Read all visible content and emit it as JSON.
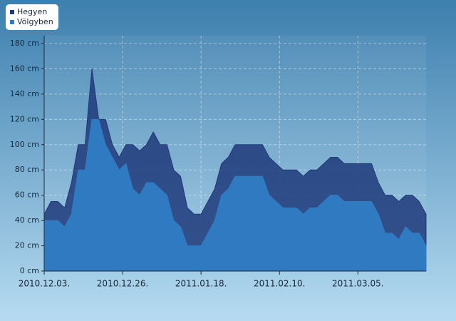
{
  "chart_data": {
    "type": "area",
    "x": [
      "2010.12.03.",
      "2010.12.05.",
      "2010.12.07.",
      "2010.12.09.",
      "2010.12.11.",
      "2010.12.13.",
      "2010.12.15.",
      "2010.12.17.",
      "2010.12.19.",
      "2010.12.21.",
      "2010.12.23.",
      "2010.12.25.",
      "2010.12.27.",
      "2010.12.29.",
      "2010.12.31.",
      "2011.01.02.",
      "2011.01.04.",
      "2011.01.06.",
      "2011.01.08.",
      "2011.01.10.",
      "2011.01.12.",
      "2011.01.14.",
      "2011.01.16.",
      "2011.01.18.",
      "2011.01.20.",
      "2011.01.22.",
      "2011.01.24.",
      "2011.01.26.",
      "2011.01.28.",
      "2011.01.30.",
      "2011.02.01.",
      "2011.02.03.",
      "2011.02.05.",
      "2011.02.07.",
      "2011.02.09.",
      "2011.02.11.",
      "2011.02.13.",
      "2011.02.15.",
      "2011.02.17.",
      "2011.02.19.",
      "2011.02.21.",
      "2011.02.23.",
      "2011.02.25.",
      "2011.02.27.",
      "2011.03.01.",
      "2011.03.03.",
      "2011.03.05.",
      "2011.03.07.",
      "2011.03.09.",
      "2011.03.11.",
      "2011.03.13.",
      "2011.03.15.",
      "2011.03.17.",
      "2011.03.19.",
      "2011.03.21.",
      "2011.03.23.",
      "2011.03.25."
    ],
    "series": [
      {
        "name": "Hegyen",
        "color": "#1f3a7a",
        "values": [
          45,
          55,
          55,
          50,
          70,
          100,
          100,
          160,
          120,
          120,
          100,
          90,
          100,
          100,
          95,
          100,
          110,
          100,
          100,
          80,
          75,
          50,
          45,
          45,
          55,
          65,
          85,
          90,
          100,
          100,
          100,
          100,
          100,
          90,
          85,
          80,
          80,
          80,
          75,
          80,
          80,
          85,
          90,
          90,
          85,
          85,
          85,
          85,
          85,
          70,
          60,
          60,
          55,
          60,
          60,
          55,
          45
        ]
      },
      {
        "name": "Völgyben",
        "color": "#2f7cc4",
        "values": [
          40,
          40,
          40,
          35,
          45,
          80,
          80,
          120,
          120,
          100,
          90,
          80,
          85,
          65,
          60,
          70,
          70,
          65,
          60,
          40,
          35,
          20,
          20,
          20,
          30,
          40,
          60,
          65,
          75,
          75,
          75,
          75,
          75,
          60,
          55,
          50,
          50,
          50,
          45,
          50,
          50,
          55,
          60,
          60,
          55,
          55,
          55,
          55,
          55,
          45,
          30,
          30,
          25,
          35,
          30,
          30,
          20
        ]
      }
    ],
    "ylim": [
      0,
      180
    ],
    "yticks": [
      {
        "value": 0,
        "label": "0 cm"
      },
      {
        "value": 20,
        "label": "20 cm"
      },
      {
        "value": 40,
        "label": "40 cm"
      },
      {
        "value": 60,
        "label": "60 cm"
      },
      {
        "value": 80,
        "label": "80 cm"
      },
      {
        "value": 100,
        "label": "100 cm"
      },
      {
        "value": 120,
        "label": "120 cm"
      },
      {
        "value": 140,
        "label": "140 cm"
      },
      {
        "value": 160,
        "label": "160 cm"
      },
      {
        "value": 180,
        "label": "180 cm"
      }
    ],
    "xticks": [
      "2010.12.03.",
      "2010.12.26.",
      "2011.01.18.",
      "2011.02.10.",
      "2011.03.05."
    ],
    "grid": true,
    "legend": "top-left"
  }
}
